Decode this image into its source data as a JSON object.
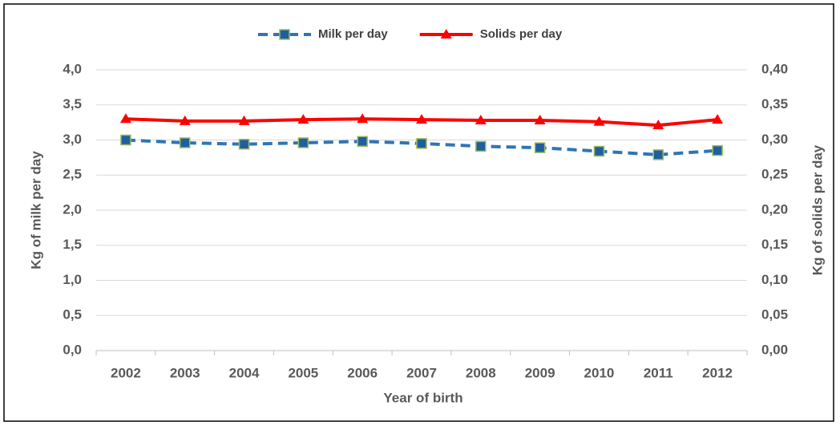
{
  "chart_data": {
    "type": "line",
    "categories": [
      "2002",
      "2003",
      "2004",
      "2005",
      "2006",
      "2007",
      "2008",
      "2009",
      "2010",
      "2011",
      "2012"
    ],
    "series": [
      {
        "name": "Milk per day",
        "color": "#2e75b6",
        "marker_fill": "#1f5fa0",
        "marker_edge": "#9bbb59",
        "dashed": true,
        "values": [
          3.0,
          2.96,
          2.94,
          2.96,
          2.98,
          2.95,
          2.91,
          2.89,
          2.84,
          2.79,
          2.85
        ]
      },
      {
        "name": "Solids per day",
        "color": "#ff0000",
        "axis": "y2",
        "values": [
          0.33,
          0.327,
          0.327,
          0.329,
          0.33,
          0.329,
          0.328,
          0.328,
          0.326,
          0.321,
          0.329
        ]
      }
    ],
    "xlabel": "Year of birth",
    "ylabel": "Kg of milk per day",
    "y2label": "Kg of solids per day",
    "ylim": [
      0,
      4
    ],
    "yticks": [
      {
        "value": 0,
        "label": "0,0"
      },
      {
        "value": 0.5,
        "label": "0,5"
      },
      {
        "value": 1,
        "label": "1,0"
      },
      {
        "value": 1.5,
        "label": "1,5"
      },
      {
        "value": 2,
        "label": "2,0"
      },
      {
        "value": 2.5,
        "label": "2,5"
      },
      {
        "value": 3,
        "label": "3,0"
      },
      {
        "value": 3.5,
        "label": "3,5"
      },
      {
        "value": 4,
        "label": "4,0"
      }
    ],
    "y2lim": [
      0,
      0.4
    ],
    "y2ticks": [
      {
        "value": 0,
        "label": "0,00"
      },
      {
        "value": 0.05,
        "label": "0,05"
      },
      {
        "value": 0.1,
        "label": "0,10"
      },
      {
        "value": 0.15,
        "label": "0,15"
      },
      {
        "value": 0.2,
        "label": "0,20"
      },
      {
        "value": 0.25,
        "label": "0,25"
      },
      {
        "value": 0.3,
        "label": "0,30"
      },
      {
        "value": 0.35,
        "label": "0,35"
      },
      {
        "value": 0.4,
        "label": "0,40"
      }
    ],
    "grid": true,
    "legend": "top"
  }
}
